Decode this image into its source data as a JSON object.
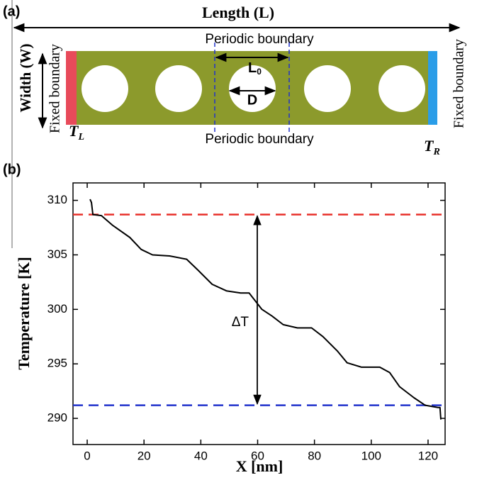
{
  "diagram": {
    "panel_a_label": "(a)",
    "length_label": "Length (L)",
    "width_label": "Width (W)",
    "periodic_top": "Periodic boundary",
    "periodic_bottom": "Periodic boundary",
    "period_label": {
      "text": "L",
      "sub": "0"
    },
    "diameter_label": "D",
    "fixed_left": "Fixed boundary",
    "fixed_right": "Fixed boundary",
    "t_left": {
      "text": "T",
      "sub": "L"
    },
    "t_right": {
      "text": "T",
      "sub": "R"
    }
  },
  "chart_data": {
    "type": "line",
    "panel_label": "(b)",
    "xlabel": "X [nm]",
    "ylabel": "Temperature [K]",
    "xlim": [
      -5,
      126
    ],
    "ylim": [
      287.6,
      311.6
    ],
    "xticks": [
      0,
      20,
      40,
      60,
      80,
      100,
      120
    ],
    "yticks": [
      290,
      295,
      300,
      305,
      310
    ],
    "series": [
      {
        "color": "#000000",
        "x": [
          1,
          1.5,
          2,
          5,
          9,
          15,
          19,
          23,
          29,
          35,
          39,
          44,
          49,
          54,
          57,
          61.5,
          65,
          69,
          74,
          79,
          83,
          88,
          91.5,
          96.5,
          103,
          106.5,
          110,
          115,
          119,
          123.5,
          124.2,
          124.5
        ],
        "values": [
          310.1,
          309.8,
          308.7,
          308.6,
          307.7,
          306.6,
          305.5,
          305.0,
          304.9,
          304.6,
          303.6,
          302.3,
          301.7,
          301.5,
          301.5,
          300.0,
          299.4,
          298.6,
          298.3,
          298.3,
          297.5,
          296.2,
          295.1,
          294.7,
          294.7,
          294.2,
          292.9,
          291.9,
          291.2,
          291.0,
          291.0,
          289.9
        ]
      }
    ],
    "reference_lines": [
      {
        "value": 308.7,
        "color": "#e8302a"
      },
      {
        "value": 291.2,
        "color": "#2233cc"
      }
    ],
    "annotation": "ΔT"
  }
}
